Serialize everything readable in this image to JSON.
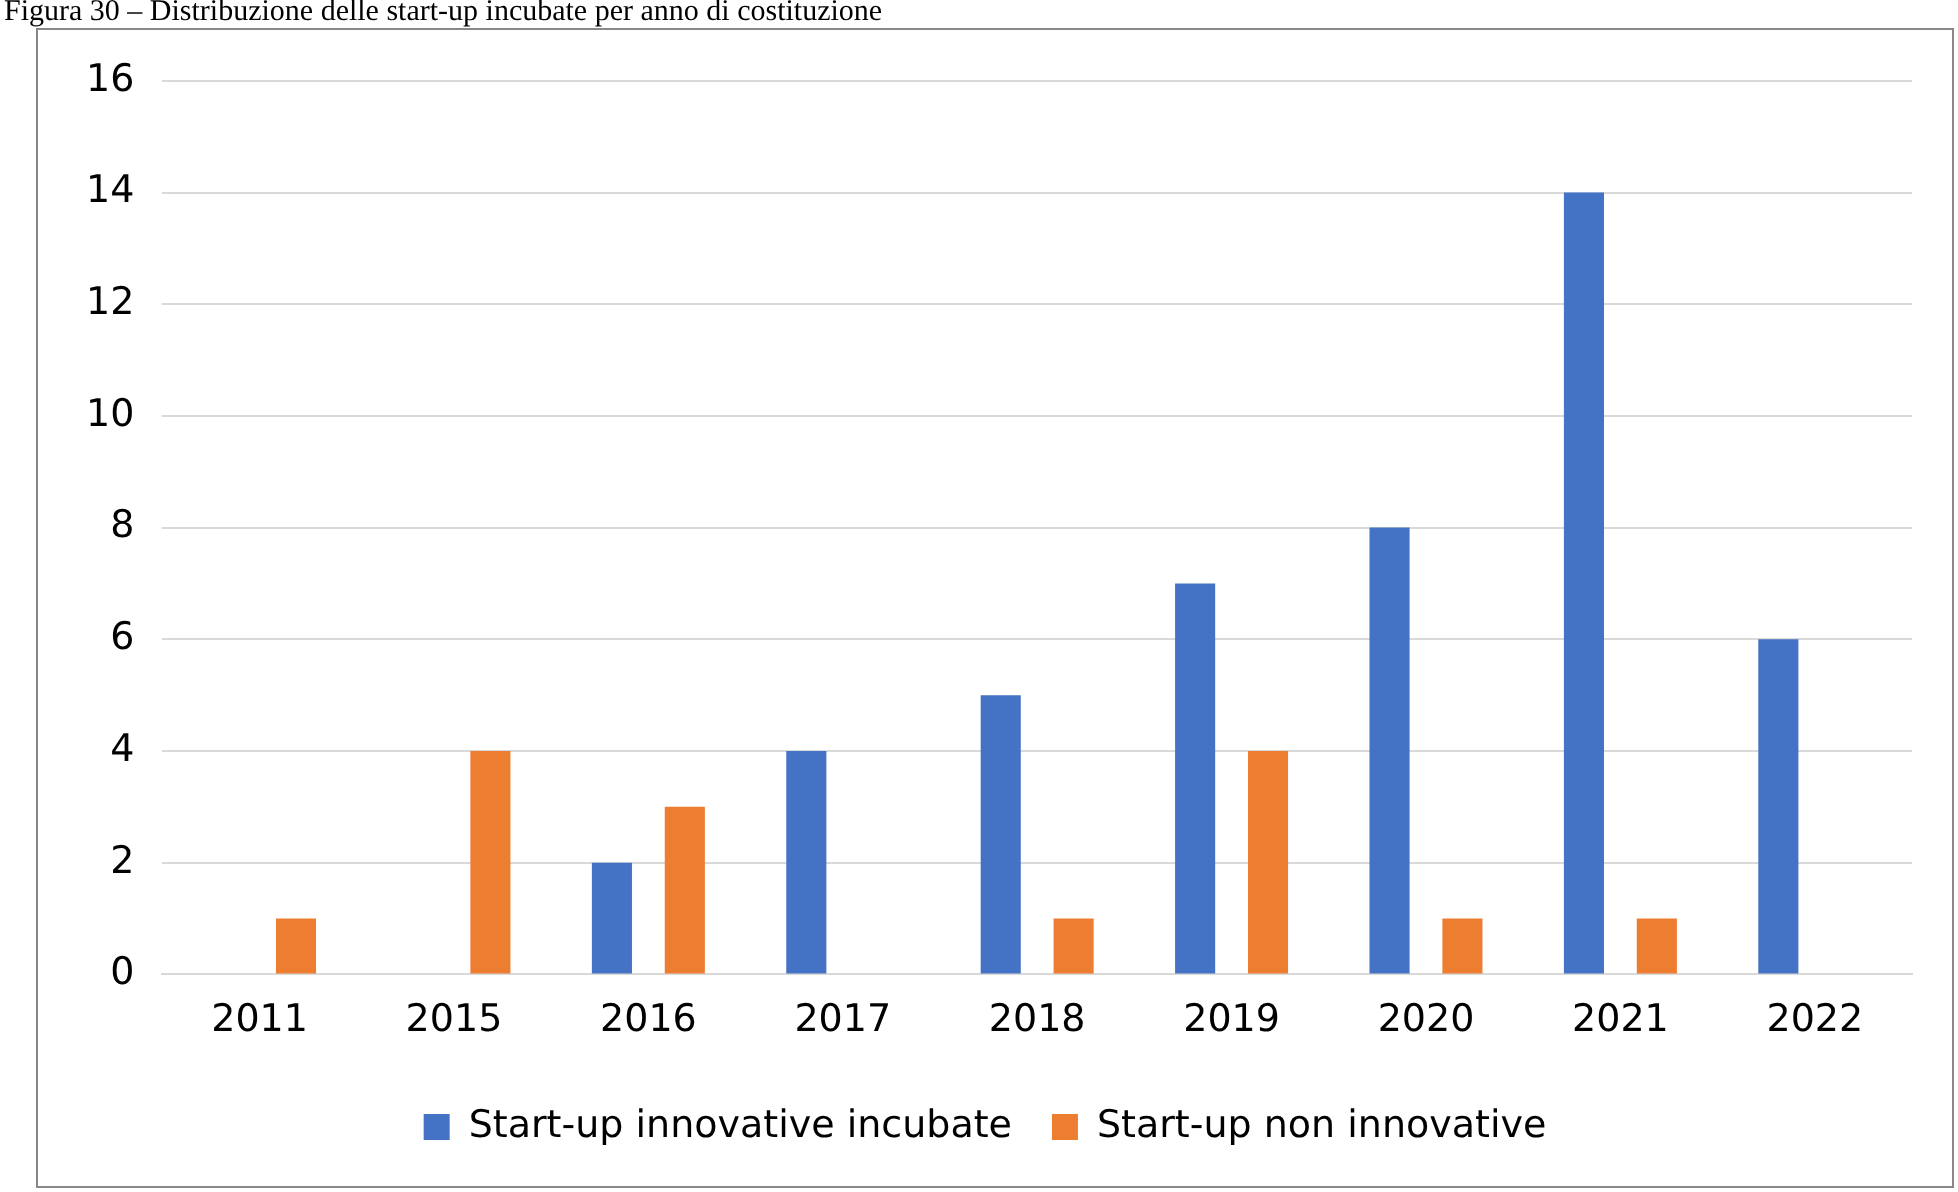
{
  "chart_data": {
    "type": "bar",
    "title": "Figura 30 – Distribuzione delle start-up incubate per anno di costituzione",
    "categories": [
      "2011",
      "2015",
      "2016",
      "2017",
      "2018",
      "2019",
      "2020",
      "2021",
      "2022"
    ],
    "series": [
      {
        "name": "Start-up innovative incubate",
        "color": "#4472c4",
        "values": [
          0,
          0,
          2,
          4,
          5,
          7,
          8,
          14,
          6
        ]
      },
      {
        "name": "Start-up non innovative",
        "color": "#ed7d31",
        "values": [
          1,
          4,
          3,
          0,
          1,
          4,
          1,
          1,
          0
        ]
      }
    ],
    "ylim": [
      0,
      16
    ],
    "yticks": [
      0,
      2,
      4,
      6,
      8,
      10,
      12,
      14,
      16
    ],
    "grid": "y",
    "legend": "bottom"
  }
}
